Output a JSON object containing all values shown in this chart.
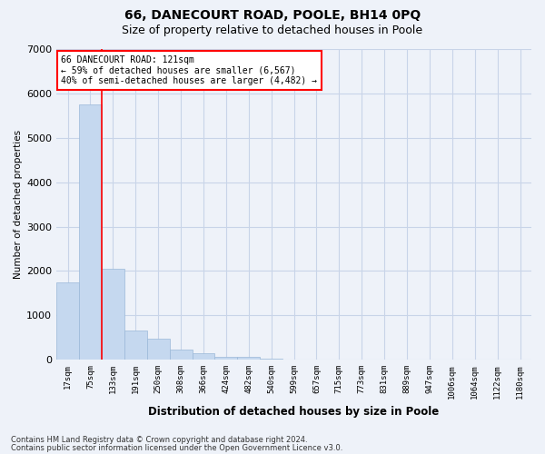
{
  "title": "66, DANECOURT ROAD, POOLE, BH14 0PQ",
  "subtitle": "Size of property relative to detached houses in Poole",
  "xlabel": "Distribution of detached houses by size in Poole",
  "ylabel": "Number of detached properties",
  "annotation_title": "66 DANECOURT ROAD: 121sqm",
  "annotation_line1": "← 59% of detached houses are smaller (6,567)",
  "annotation_line2": "40% of semi-detached houses are larger (4,482) →",
  "categories": [
    "17sqm",
    "75sqm",
    "133sqm",
    "191sqm",
    "250sqm",
    "308sqm",
    "366sqm",
    "424sqm",
    "482sqm",
    "540sqm",
    "599sqm",
    "657sqm",
    "715sqm",
    "773sqm",
    "831sqm",
    "889sqm",
    "947sqm",
    "1006sqm",
    "1064sqm",
    "1122sqm",
    "1180sqm"
  ],
  "values": [
    1750,
    5750,
    2050,
    650,
    480,
    220,
    150,
    70,
    70,
    20,
    0,
    0,
    0,
    0,
    0,
    0,
    0,
    0,
    0,
    0,
    0
  ],
  "bar_color": "#c5d8ef",
  "bar_edge_color": "#9ab8d8",
  "vline_x": 1.5,
  "ylim": [
    0,
    7000
  ],
  "yticks": [
    0,
    1000,
    2000,
    3000,
    4000,
    5000,
    6000,
    7000
  ],
  "footnote1": "Contains HM Land Registry data © Crown copyright and database right 2024.",
  "footnote2": "Contains public sector information licensed under the Open Government Licence v3.0.",
  "background_color": "#eef2f9",
  "plot_bg_color": "#eef2f9",
  "grid_color": "#c8d4e8",
  "title_fontsize": 10,
  "subtitle_fontsize": 9
}
